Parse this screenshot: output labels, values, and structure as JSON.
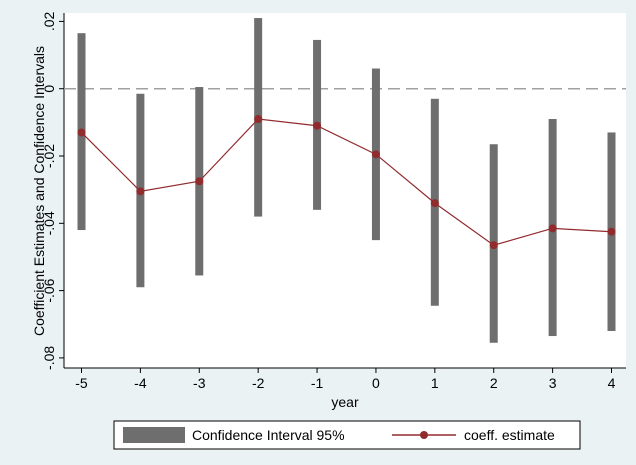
{
  "chart_data": {
    "type": "line",
    "title": "",
    "xlabel": "year",
    "ylabel": "Coefficient Estimates and Confidence Intervals",
    "x": [
      -5,
      -4,
      -3,
      -2,
      -1,
      0,
      1,
      2,
      3,
      4
    ],
    "xticks": [
      "-5",
      "-4",
      "-3",
      "-2",
      "-1",
      "0",
      "1",
      "2",
      "3",
      "4"
    ],
    "yticks": [
      0.02,
      0,
      -0.02,
      -0.04,
      -0.06,
      -0.08
    ],
    "ytick_labels": [
      ".02",
      "0",
      "-.02",
      "-.04",
      "-.06",
      "-.08"
    ],
    "ylim": [
      -0.083,
      0.0225
    ],
    "reference_line": 0,
    "grid": false,
    "legend_position": "bottom",
    "series": [
      {
        "name": "Confidence Interval 95%",
        "kind": "range-bar",
        "color": "#6e6e6e",
        "lower": [
          -0.042,
          -0.059,
          -0.0555,
          -0.038,
          -0.036,
          -0.045,
          -0.0645,
          -0.0755,
          -0.0735,
          -0.072
        ],
        "upper": [
          0.0165,
          -0.0015,
          0.0005,
          0.021,
          0.0145,
          0.006,
          -0.003,
          -0.0165,
          -0.009,
          -0.013
        ]
      },
      {
        "name": "coeff. estimate",
        "kind": "line-marker",
        "color": "#912b2e",
        "values": [
          -0.013,
          -0.0305,
          -0.0275,
          -0.009,
          -0.011,
          -0.0195,
          -0.034,
          -0.0465,
          -0.0415,
          -0.0425
        ]
      }
    ]
  }
}
